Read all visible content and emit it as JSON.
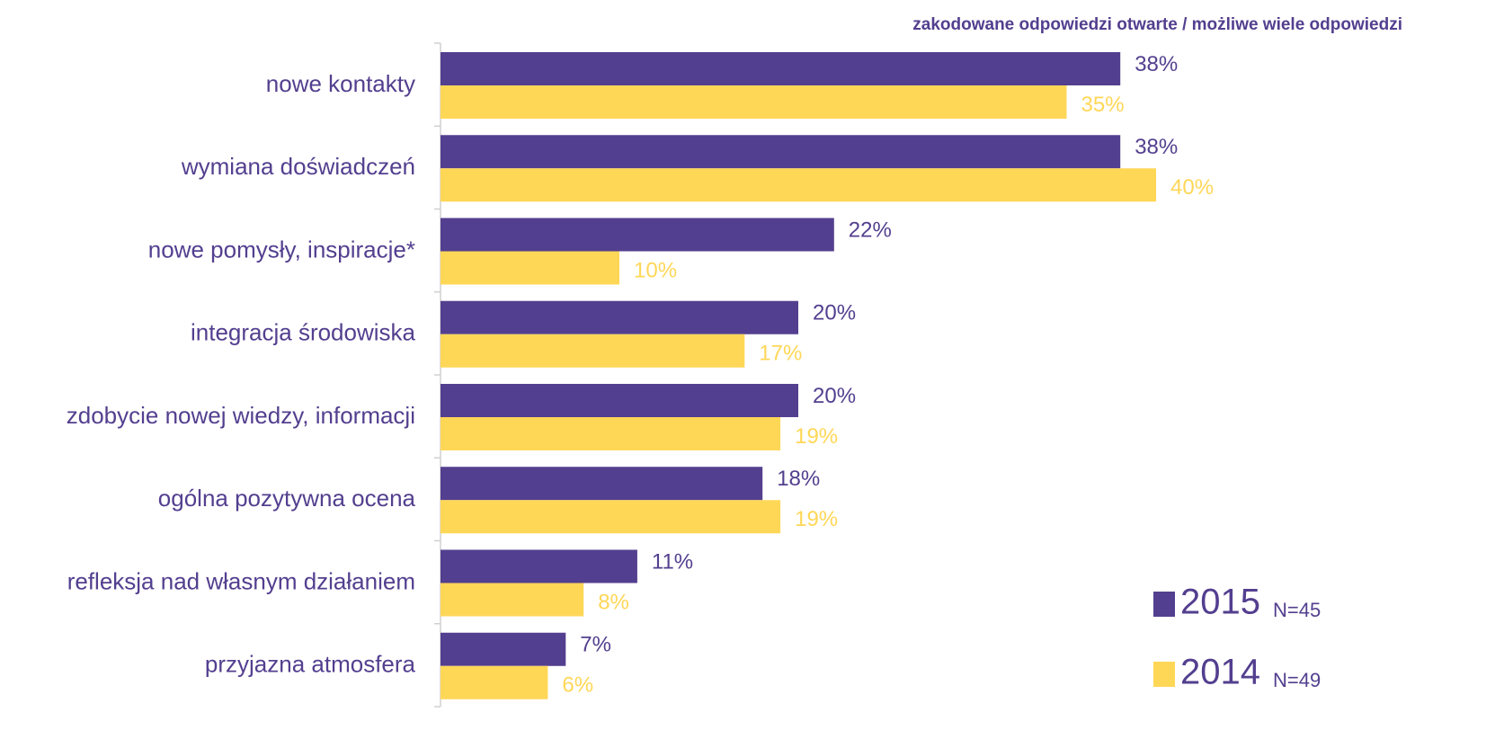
{
  "chart_data": {
    "type": "hbar",
    "subtitle": "zakodowane odpowiedzi otwarte / możliwe wiele odpowiedzi",
    "categories": [
      "nowe kontakty",
      "wymiana doświadczeń",
      "nowe pomysły, inspiracje*",
      "integracja środowiska",
      "zdobycie nowej wiedzy, informacji",
      "ogólna pozytywna ocena",
      "refleksja nad własnym działaniem",
      "przyjazna atmosfera"
    ],
    "series": [
      {
        "name": "2015",
        "n_label": "N=45",
        "color": "#533f8f",
        "label_color": "#533f8f",
        "values": [
          38,
          38,
          22,
          20,
          20,
          18,
          11,
          7
        ],
        "value_labels": [
          "38%",
          "38%",
          "22%",
          "20%",
          "20%",
          "18%",
          "11%",
          "7%"
        ]
      },
      {
        "name": "2014",
        "n_label": "N=49",
        "color": "#ffd757",
        "label_color": "#ffd757",
        "values": [
          35,
          40,
          10,
          17,
          19,
          19,
          8,
          6
        ],
        "value_labels": [
          "35%",
          "40%",
          "10%",
          "17%",
          "19%",
          "19%",
          "8%",
          "6%"
        ]
      }
    ],
    "xlim": [
      0,
      50
    ]
  }
}
